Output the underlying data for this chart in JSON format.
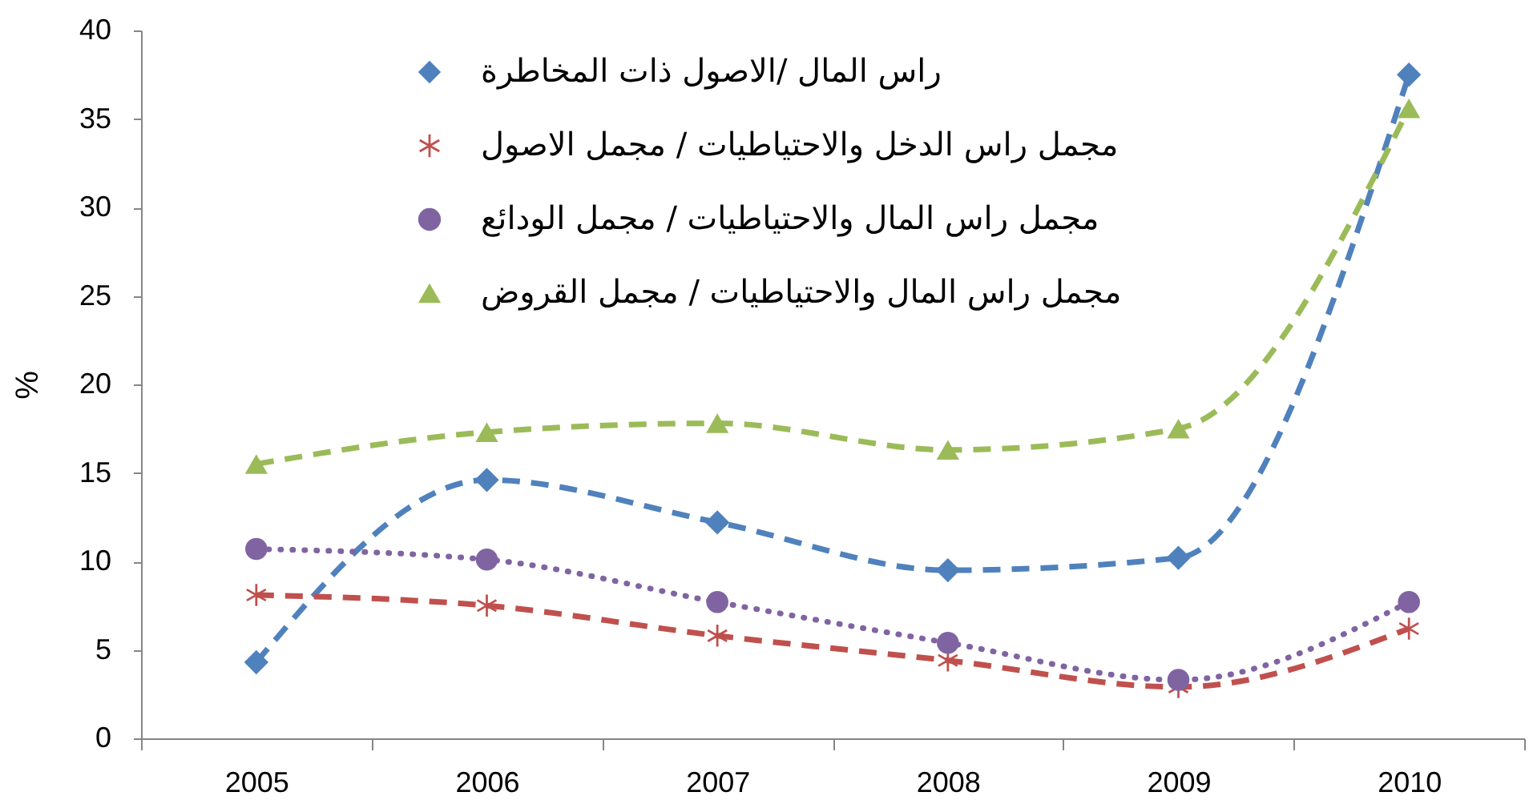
{
  "chart_data": {
    "type": "line",
    "categories": [
      "2005",
      "2006",
      "2007",
      "2008",
      "2009",
      "2010"
    ],
    "ylabel": "%",
    "ylim": [
      0,
      40
    ],
    "yticks": [
      0,
      5,
      10,
      15,
      20,
      25,
      30,
      35,
      40
    ],
    "grid": false,
    "legend": "top",
    "series": [
      {
        "name": "راس المال /الاصول ذات المخاطرة",
        "color": "#4f81bd",
        "marker": "diamond",
        "line_style": "dashed",
        "values": [
          4.3,
          14.6,
          12.2,
          9.5,
          10.2,
          37.5
        ]
      },
      {
        "name": "مجمل راس الدخل والاحتياطيات / مجمل الاصول",
        "color": "#c0504d",
        "marker": "cross",
        "line_style": "dashed",
        "values": [
          8.1,
          7.5,
          5.8,
          4.4,
          2.9,
          6.2
        ]
      },
      {
        "name": "مجمل راس المال والاحتياطيات / مجمل الودائع",
        "color": "#8064a2",
        "marker": "circle",
        "line_style": "dotted",
        "values": [
          10.7,
          10.1,
          7.7,
          5.4,
          3.3,
          7.7
        ]
      },
      {
        "name": "مجمل راس المال والاحتياطيات / مجمل القروض",
        "color": "#9bbb59",
        "marker": "triangle",
        "line_style": "dashed",
        "values": [
          15.5,
          17.3,
          17.8,
          16.3,
          17.5,
          35.6
        ]
      }
    ]
  }
}
